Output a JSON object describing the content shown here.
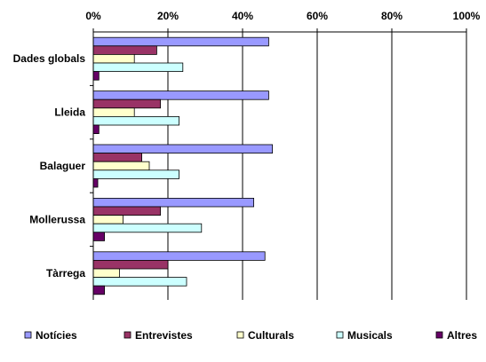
{
  "chart_data": {
    "type": "bar",
    "orientation": "horizontal",
    "categories": [
      "Dades globals",
      "Lleida",
      "Balaguer",
      "Mollerussa",
      "Tàrrega"
    ],
    "series": [
      {
        "name": "Notícies",
        "values": [
          47,
          47,
          48,
          43,
          46
        ]
      },
      {
        "name": "Entrevistes",
        "values": [
          17,
          18,
          13,
          18,
          20
        ]
      },
      {
        "name": "Culturals",
        "values": [
          11,
          11,
          15,
          8,
          7
        ]
      },
      {
        "name": "Musicals",
        "values": [
          24,
          23,
          23,
          29,
          25
        ]
      },
      {
        "name": "Altres",
        "values": [
          1.5,
          1.5,
          1.2,
          3,
          3
        ]
      }
    ],
    "xlim": [
      0,
      100
    ],
    "x_ticks": [
      "0%",
      "20%",
      "40%",
      "60%",
      "80%",
      "100%"
    ],
    "x_axis_position": "top",
    "grid": "vertical",
    "legend_position": "bottom",
    "colors": [
      "#9999FF",
      "#993366",
      "#FFFFCC",
      "#CCFFFF",
      "#660066"
    ]
  }
}
